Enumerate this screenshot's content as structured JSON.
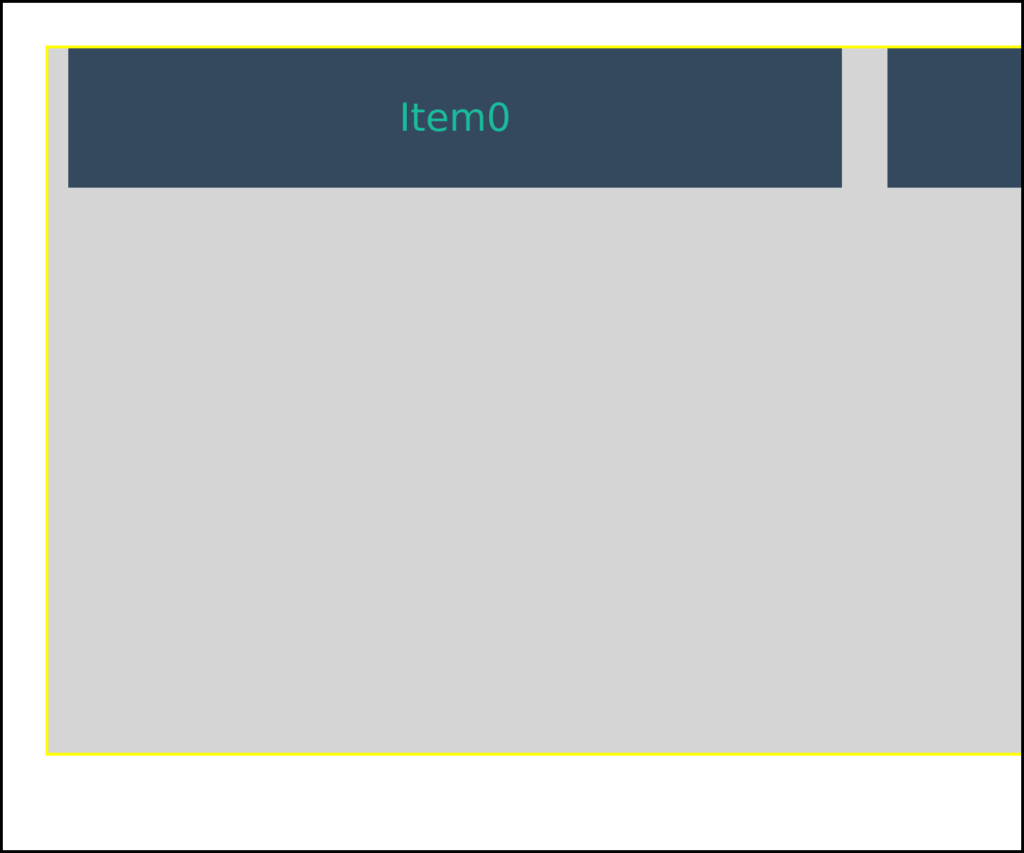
{
  "colors": {
    "page_background": "#ffffff",
    "outer_border": "#000000",
    "container_border": "#ffff00",
    "container_background": "#d5d5d5",
    "item_background": "#34495e",
    "item_text": "#1abc9c"
  },
  "items": [
    {
      "label": "Item0"
    },
    {
      "label": ""
    }
  ]
}
